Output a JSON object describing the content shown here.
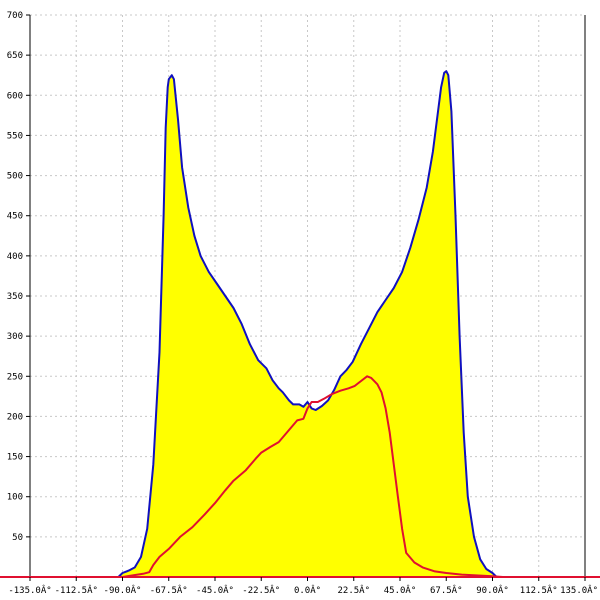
{
  "chart_data": {
    "type": "area",
    "title": "",
    "xlabel": "",
    "ylabel": "",
    "xlim": [
      -135,
      135
    ],
    "ylim": [
      0,
      700
    ],
    "grid": true,
    "x_ticks": [
      -135,
      -112.5,
      -90,
      -67.5,
      -45,
      -22.5,
      0,
      22.5,
      45,
      67.5,
      90,
      112.5,
      135
    ],
    "x_tick_labels": [
      "-135.0Â°",
      "-112.5Â°",
      "-90.0Â°",
      "-67.5Â°",
      "-45.0Â°",
      "-22.5Â°",
      "0.0Â°",
      "22.5Â°",
      "45.0Â°",
      "67.5Â°",
      "90.0Â°",
      "112.5Â°",
      "135.0Â°"
    ],
    "y_ticks": [
      50,
      100,
      150,
      200,
      250,
      300,
      350,
      400,
      450,
      500,
      550,
      600,
      650,
      700
    ],
    "y_tick_labels": [
      "50",
      "100",
      "150",
      "200",
      "250",
      "300",
      "350",
      "400",
      "450",
      "500",
      "550",
      "600",
      "650",
      "700"
    ],
    "series": [
      {
        "color": "#1010c0",
        "fill": "#ffff00",
        "points": [
          [
            -92,
            0
          ],
          [
            -90,
            5
          ],
          [
            -87,
            8
          ],
          [
            -84,
            12
          ],
          [
            -81,
            25
          ],
          [
            -78,
            60
          ],
          [
            -75,
            140
          ],
          [
            -72,
            280
          ],
          [
            -70,
            450
          ],
          [
            -69,
            560
          ],
          [
            -68,
            610
          ],
          [
            -67.5,
            620
          ],
          [
            -66,
            625
          ],
          [
            -65,
            620
          ],
          [
            -63,
            570
          ],
          [
            -61,
            510
          ],
          [
            -58,
            460
          ],
          [
            -55,
            425
          ],
          [
            -52,
            400
          ],
          [
            -48,
            380
          ],
          [
            -44,
            365
          ],
          [
            -40,
            350
          ],
          [
            -36,
            335
          ],
          [
            -32,
            315
          ],
          [
            -28,
            290
          ],
          [
            -24,
            270
          ],
          [
            -20,
            260
          ],
          [
            -17,
            245
          ],
          [
            -14,
            235
          ],
          [
            -12,
            230
          ],
          [
            -9,
            220
          ],
          [
            -7,
            215
          ],
          [
            -4,
            215
          ],
          [
            -2,
            212
          ],
          [
            0,
            218
          ],
          [
            2,
            210
          ],
          [
            4,
            208
          ],
          [
            7,
            213
          ],
          [
            10,
            220
          ],
          [
            13,
            233
          ],
          [
            16,
            250
          ],
          [
            19,
            258
          ],
          [
            22,
            268
          ],
          [
            26,
            290
          ],
          [
            30,
            310
          ],
          [
            34,
            330
          ],
          [
            38,
            345
          ],
          [
            42,
            360
          ],
          [
            46,
            380
          ],
          [
            50,
            410
          ],
          [
            54,
            445
          ],
          [
            58,
            485
          ],
          [
            61,
            530
          ],
          [
            63,
            570
          ],
          [
            65,
            610
          ],
          [
            66.5,
            628
          ],
          [
            67.5,
            630
          ],
          [
            68.5,
            625
          ],
          [
            70,
            580
          ],
          [
            72,
            450
          ],
          [
            74,
            300
          ],
          [
            76,
            180
          ],
          [
            78,
            100
          ],
          [
            81,
            50
          ],
          [
            84,
            22
          ],
          [
            87,
            10
          ],
          [
            90,
            5
          ],
          [
            92,
            0
          ]
        ]
      },
      {
        "color": "#e01030",
        "fill": "none",
        "points": [
          [
            -90,
            0
          ],
          [
            -85,
            2
          ],
          [
            -80,
            4
          ],
          [
            -77,
            6
          ],
          [
            -75,
            15
          ],
          [
            -72,
            25
          ],
          [
            -67.5,
            35
          ],
          [
            -62,
            50
          ],
          [
            -56,
            62
          ],
          [
            -50,
            78
          ],
          [
            -45,
            92
          ],
          [
            -40,
            108
          ],
          [
            -36,
            120
          ],
          [
            -30,
            133
          ],
          [
            -25,
            148
          ],
          [
            -22.5,
            155
          ],
          [
            -18,
            162
          ],
          [
            -14,
            168
          ],
          [
            -10,
            180
          ],
          [
            -5,
            195
          ],
          [
            -2,
            197
          ],
          [
            0,
            210
          ],
          [
            2,
            218
          ],
          [
            5,
            218
          ],
          [
            8,
            222
          ],
          [
            12,
            228
          ],
          [
            16,
            232
          ],
          [
            20,
            235
          ],
          [
            23,
            238
          ],
          [
            26,
            244
          ],
          [
            29,
            250
          ],
          [
            31,
            248
          ],
          [
            34,
            240
          ],
          [
            36,
            230
          ],
          [
            38,
            210
          ],
          [
            40,
            180
          ],
          [
            42,
            140
          ],
          [
            44,
            100
          ],
          [
            46,
            60
          ],
          [
            48,
            30
          ],
          [
            52,
            18
          ],
          [
            56,
            12
          ],
          [
            62,
            7
          ],
          [
            67.5,
            5
          ],
          [
            75,
            3
          ],
          [
            82,
            2
          ],
          [
            90,
            1
          ],
          [
            95,
            0
          ]
        ]
      }
    ]
  },
  "colors": {
    "background": "#ffffff",
    "grid": "#c8c8c8",
    "axis": "#000000",
    "baseline": "#e01030"
  }
}
